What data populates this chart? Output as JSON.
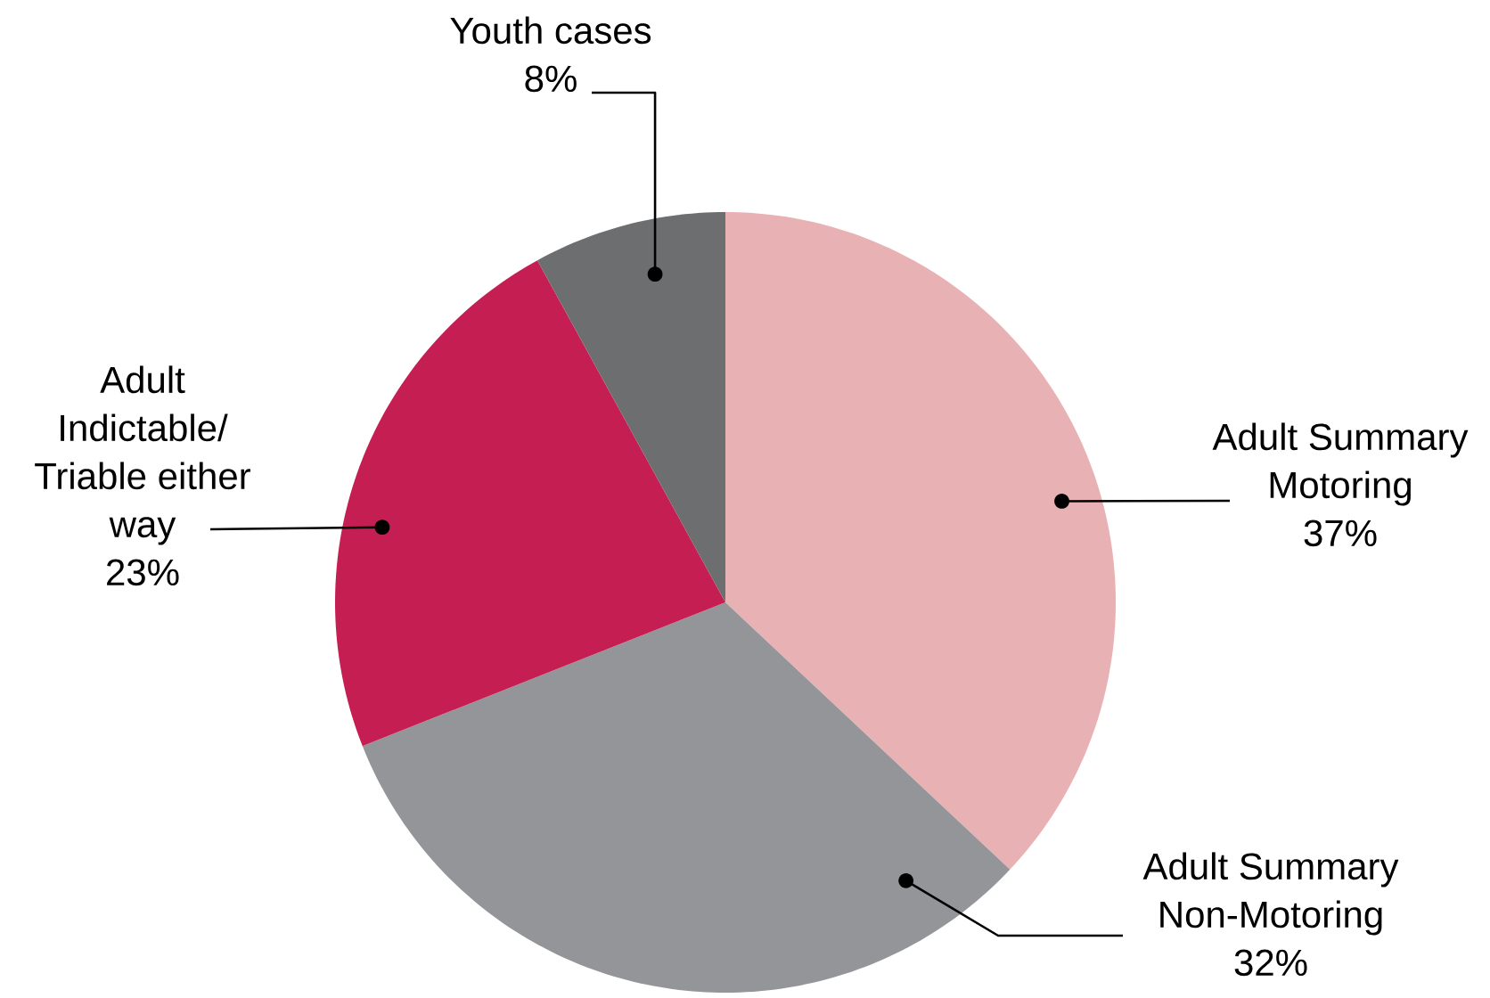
{
  "chart_data": {
    "type": "pie",
    "categories": [
      "Adult Summary Motoring",
      "Adult Summary Non-Motoring",
      "Adult Indictable/ Triable either way",
      "Youth cases"
    ],
    "values": [
      37,
      32,
      23,
      8
    ],
    "colors": [
      "#e8b2b5",
      "#949599",
      "#c51e52",
      "#6d6e70"
    ],
    "value_labels": [
      "37%",
      "32%",
      "23%",
      "8%"
    ]
  }
}
